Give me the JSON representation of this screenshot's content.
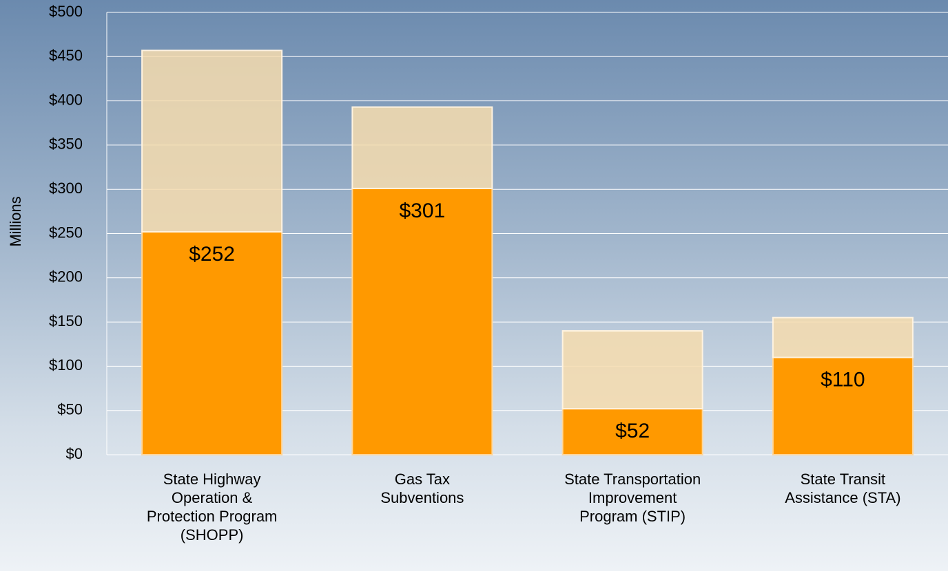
{
  "chart_data": {
    "type": "stacked_bar",
    "y_axis_label": "Millions",
    "categories": [
      "State Highway Operation & Protection Program (SHOPP)",
      "Gas Tax Subventions",
      "State Transportation Improvement Program (STIP)",
      "State Transit Assistance (STA)"
    ],
    "series": [
      {
        "color": "#ff9900",
        "values": [
          252,
          301,
          52,
          110
        ],
        "value_labels": [
          "$252",
          "$301",
          "$52",
          "$110"
        ]
      },
      {
        "color": "#f6dcae",
        "values": [
          205,
          92,
          88,
          45
        ]
      }
    ],
    "ylim": [
      0,
      500
    ],
    "yticks": [
      {
        "value": 0,
        "label": "$0"
      },
      {
        "value": 50,
        "label": "$50"
      },
      {
        "value": 100,
        "label": "$100"
      },
      {
        "value": 150,
        "label": "$150"
      },
      {
        "value": 200,
        "label": "$200"
      },
      {
        "value": 250,
        "label": "$250"
      },
      {
        "value": 300,
        "label": "$300"
      },
      {
        "value": 350,
        "label": "$350"
      },
      {
        "value": 400,
        "label": "$400"
      },
      {
        "value": 450,
        "label": "$450"
      },
      {
        "value": 500,
        "label": "$500"
      }
    ],
    "grid": true
  }
}
